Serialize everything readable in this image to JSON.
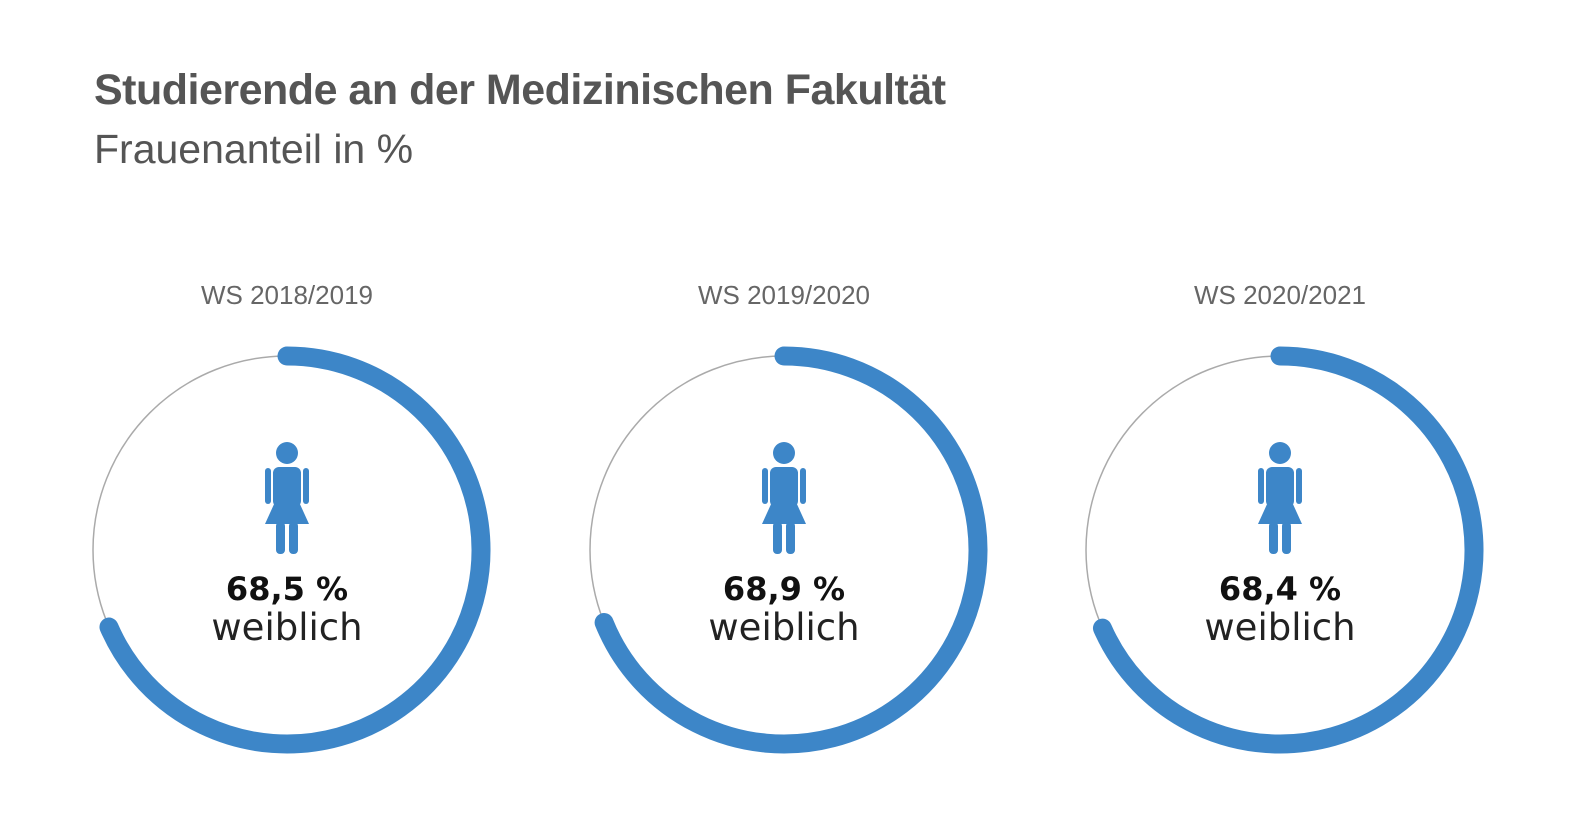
{
  "title": "Studierende an der Medizinischen Fakultät",
  "subtitle": "Frauenanteil in %",
  "colors": {
    "accent": "#3d86c8",
    "ring_track": "#aaaaaa",
    "title": "#555555"
  },
  "icon": "female-person-icon",
  "chart_data": {
    "type": "pie",
    "title": "Studierende an der Medizinischen Fakultät",
    "subtitle": "Frauenanteil in %",
    "categories": [
      "WS 2018/2019",
      "WS 2019/2020",
      "WS 2020/2021"
    ],
    "values": [
      68.5,
      68.9,
      68.4
    ],
    "unit": "%",
    "panels": [
      {
        "label": "WS 2018/2019",
        "value": 68.5,
        "value_label": "68,5 %",
        "caption": "weiblich"
      },
      {
        "label": "WS 2019/2020",
        "value": 68.9,
        "value_label": "68,9 %",
        "caption": "weiblich"
      },
      {
        "label": "WS 2020/2021",
        "value": 68.4,
        "value_label": "68,4 %",
        "caption": "weiblich"
      }
    ]
  }
}
